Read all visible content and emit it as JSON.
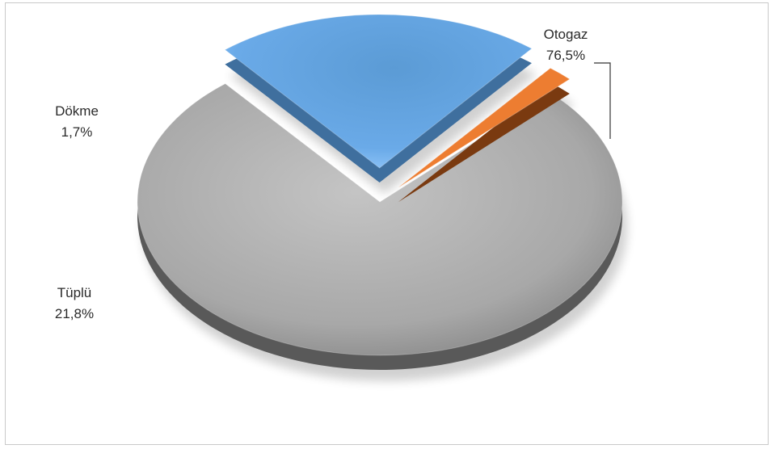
{
  "chart_data": {
    "type": "pie",
    "title": "",
    "slices": [
      {
        "name": "Otogaz",
        "label": "Otogaz",
        "value_label": "76,5%",
        "value": 76.5,
        "color": "#a6a6a6",
        "side_color": "#595959"
      },
      {
        "name": "Tüplü",
        "label": "Tüplü",
        "value_label": "21,8%",
        "value": 21.8,
        "color": "#5b9bd5",
        "side_color": "#3f6f9e"
      },
      {
        "name": "Dökme",
        "label": "Dökme",
        "value_label": "1,7%",
        "value": 1.7,
        "color": "#ed7d31",
        "side_color": "#7a3a10"
      }
    ],
    "style": "3d-exploded",
    "legend": "none"
  }
}
